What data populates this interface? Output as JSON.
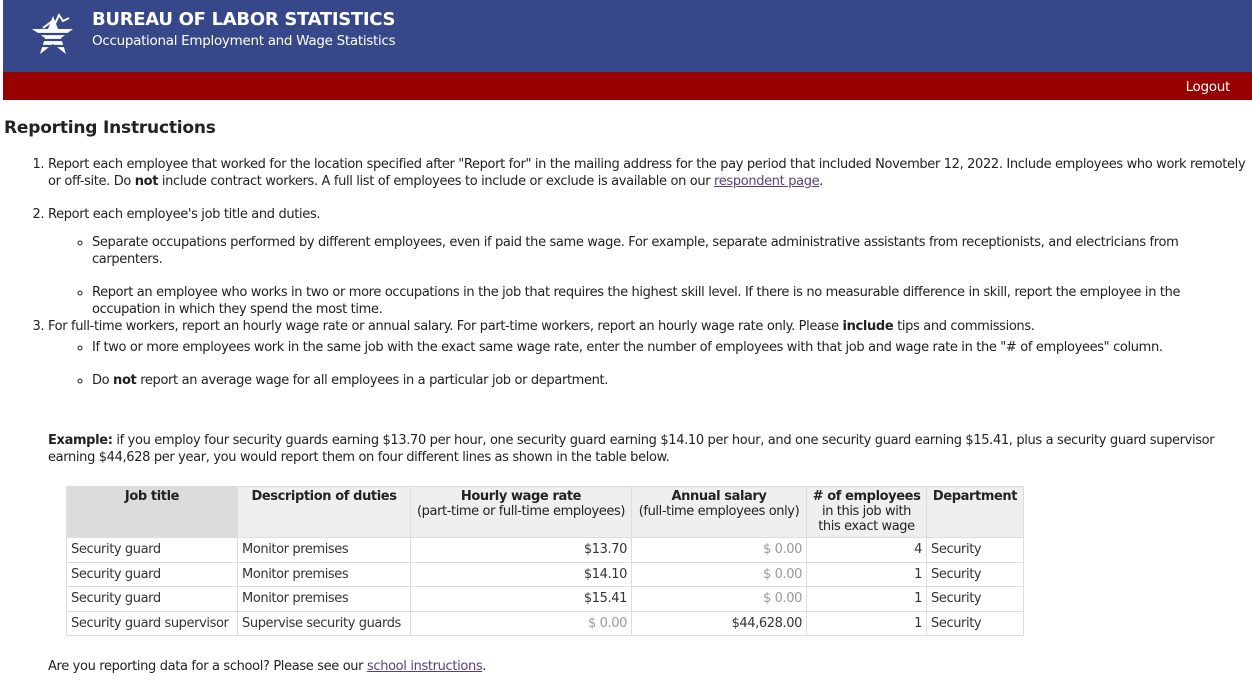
{
  "header": {
    "title": "BUREAU OF LABOR STATISTICS",
    "subtitle": "Occupational Employment and Wage Statistics",
    "logout_label": "Logout",
    "brand_color": "#37488a",
    "bar_color": "#990000"
  },
  "page_title": "Reporting Instructions",
  "instructions": {
    "item1_a": "Report each employee that worked for the location specified after \"Report for\" in the mailing address for the pay period that included November 12, 2022. Include employees who work remotely or off-site. Do ",
    "item1_bold": "not",
    "item1_b": " include contract workers. A full list of employees to include or exclude is available on our ",
    "item1_link": "respondent page",
    "item1_c": ".",
    "item2": "Report each employee's job title and duties.",
    "item2_sub1": "Separate occupations performed by different employees, even if paid the same wage. For example, separate administrative assistants from receptionists, and electricians from carpenters.",
    "item2_sub2": "Report an employee who works in two or more occupations in the job that requires the highest skill level. If there is no measurable difference in skill, report the employee in the occupation in which they spend the most time.",
    "item3_a": "For full-time workers, report an hourly wage rate or annual salary. For part-time workers, report an hourly wage rate only. Please ",
    "item3_bold": "include",
    "item3_b": " tips and commissions.",
    "item3_sub1": "If two or more employees work in the same job with the exact same wage rate, enter the number of employees with that job and wage rate in the \"# of employees\" column.",
    "item3_sub2_a": "Do ",
    "item3_sub2_bold": "not",
    "item3_sub2_b": " report an average wage for all employees in a particular job or department."
  },
  "example": {
    "label": "Example:",
    "text": " if you employ four security guards earning $13.70 per hour, one security guard earning $14.10 per hour, and one security guard earning $15.41, plus a security guard supervisor earning $44,628 per year, you would report them on four different lines as shown in the table below."
  },
  "table": {
    "headers": [
      {
        "title": "Job title",
        "sub": ""
      },
      {
        "title": "Description of duties",
        "sub": ""
      },
      {
        "title": "Hourly wage rate",
        "sub": "(part-time or full-time employees)"
      },
      {
        "title": "Annual salary",
        "sub": "(full-time employees only)"
      },
      {
        "title": "# of employees",
        "sub": "in this job with this exact wage"
      },
      {
        "title": "Department",
        "sub": ""
      }
    ],
    "rows": [
      [
        "Security guard",
        "Monitor premises",
        "$13.70",
        "$ 0.00",
        "4",
        "Security"
      ],
      [
        "Security guard",
        "Monitor premises",
        "$14.10",
        "$ 0.00",
        "1",
        "Security"
      ],
      [
        "Security guard",
        "Monitor premises",
        "$15.41",
        "$ 0.00",
        "1",
        "Security"
      ],
      [
        "Security guard supervisor",
        "Supervise security guards",
        "$ 0.00",
        "$44,628.00",
        "1",
        "Security"
      ]
    ]
  },
  "footer": {
    "text": "Are you reporting data for a school? Please see our ",
    "link": "school instructions",
    "end": "."
  }
}
